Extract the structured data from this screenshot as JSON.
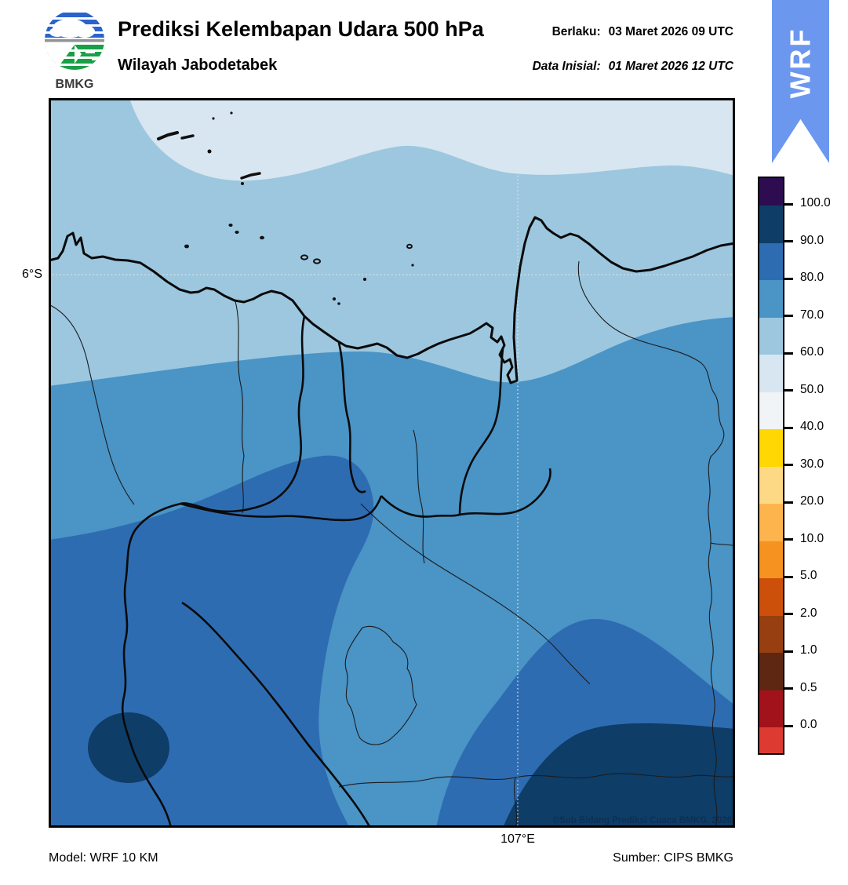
{
  "header": {
    "logo_text": "BMKG",
    "title": "Prediksi Kelembapan Udara 500 hPa",
    "subtitle": "Wilayah Jabodetabek",
    "valid_label": "Berlaku:",
    "valid_value": "03 Maret 2026 09 UTC",
    "init_label": "Data Inisial:",
    "init_value": "01 Maret 2026 12 UTC",
    "ribbon_text": "WRF",
    "ribbon_color": "#6b97ef"
  },
  "map": {
    "lat_label": "6°S",
    "lon_label": "107°E",
    "copyright": "©Sub Bidang Prediksi Cuaca BMKG, 2026",
    "band_colors": {
      "band_50_60": "#d8e6f1",
      "band_60_70": "#9cc7df",
      "band_70_80": "#4a94c6",
      "band_80_90": "#2e6cb2",
      "band_90_100": "#0e3d68"
    }
  },
  "colorbar": {
    "labels": [
      "100.0",
      "90.0",
      "80.0",
      "70.0",
      "60.0",
      "50.0",
      "40.0",
      "30.0",
      "20.0",
      "10.0",
      "5.0",
      "2.0",
      "1.0",
      "0.5",
      "0.0"
    ],
    "segment_colors_top_to_bottom": [
      "#2d0c50",
      "#0e3d68",
      "#2e6cb2",
      "#4a94c6",
      "#9cc7df",
      "#d8e6f1",
      "#f1f4f7",
      "#ffd702",
      "#fed985",
      "#fdb44d",
      "#f6921f",
      "#cc4f0a",
      "#973f10",
      "#5e2712",
      "#a2121a",
      "#dd3b31"
    ]
  },
  "footer": {
    "model": "Model: WRF 10 KM",
    "source": "Sumber: CIPS BMKG"
  }
}
